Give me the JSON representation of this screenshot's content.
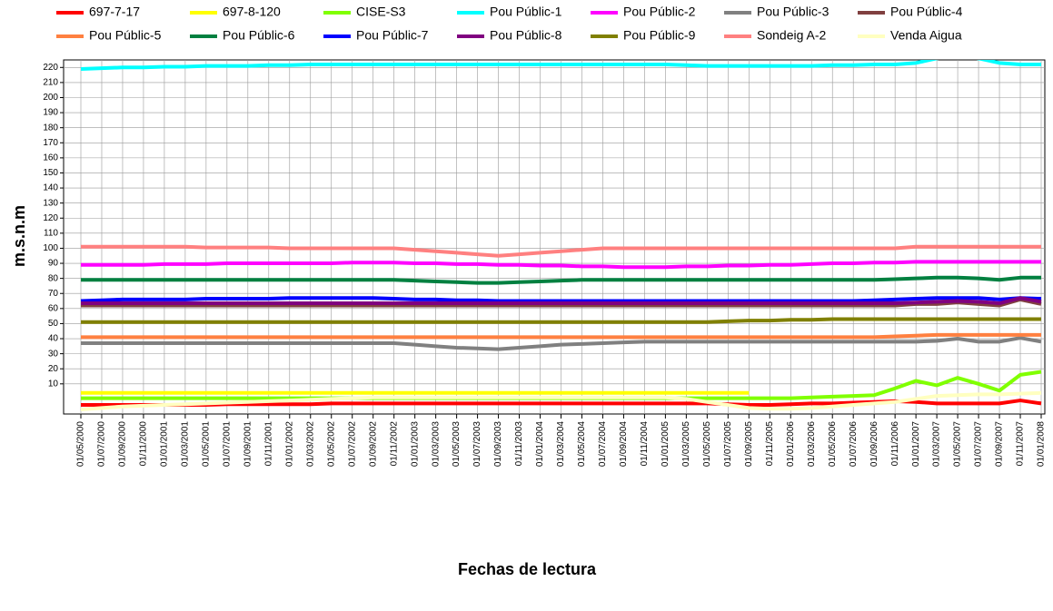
{
  "chart_data": {
    "type": "line",
    "x_label": "Fechas de lectura",
    "y_label": "m.s.n.m",
    "legend": "top",
    "grid": true,
    "categories": [
      "01/05/2000",
      "01/07/2000",
      "01/09/2000",
      "01/11/2000",
      "01/01/2001",
      "01/03/2001",
      "01/05/2001",
      "01/07/2001",
      "01/09/2001",
      "01/11/2001",
      "01/01/2002",
      "01/03/2002",
      "01/05/2002",
      "01/07/2002",
      "01/09/2002",
      "01/11/2002",
      "01/01/2003",
      "01/03/2003",
      "01/05/2003",
      "01/07/2003",
      "01/09/2003",
      "01/11/2003",
      "01/01/2004",
      "01/03/2004",
      "01/05/2004",
      "01/07/2004",
      "01/09/2004",
      "01/11/2004",
      "01/01/2005",
      "01/03/2005",
      "01/05/2005",
      "01/07/2005",
      "01/09/2005",
      "01/11/2005",
      "01/01/2006",
      "01/03/2006",
      "01/05/2006",
      "01/07/2006",
      "01/09/2006",
      "01/11/2006",
      "01/01/2007",
      "01/03/2007",
      "01/05/2007",
      "01/07/2007",
      "01/09/2007",
      "01/11/2007",
      "01/01/2008"
    ],
    "ylim": [
      -10,
      225
    ],
    "yticks": [
      10,
      20,
      30,
      40,
      50,
      60,
      70,
      80,
      90,
      100,
      110,
      120,
      130,
      140,
      150,
      160,
      170,
      180,
      190,
      200,
      210,
      220
    ],
    "series": [
      {
        "name": "697-7-17",
        "color": "#ff0000",
        "values": [
          -4,
          -4,
          -4,
          -4,
          -4,
          -4,
          -4,
          -3.5,
          -3.5,
          -3.5,
          -3.5,
          -3.5,
          -3,
          -3,
          -3,
          -3,
          -3,
          -3,
          -3,
          -3,
          -3,
          -3,
          -3,
          -3,
          -3,
          -3,
          -3,
          -3,
          -3,
          -3,
          -3,
          -3.5,
          -4,
          -4,
          -3.5,
          -3,
          -3,
          -2.5,
          -2,
          -1.5,
          -2,
          -3,
          -3,
          -3,
          -3,
          -1,
          -3
        ]
      },
      {
        "name": "697-8-120",
        "color": "#ffff00",
        "values": [
          4,
          4,
          4,
          4,
          4,
          4,
          4,
          4,
          4,
          4,
          4,
          4,
          4,
          4,
          4,
          4,
          4,
          4,
          4,
          4,
          4,
          4,
          4,
          4,
          4,
          4,
          4,
          4,
          4,
          4,
          4,
          4,
          4,
          null,
          null,
          null,
          null,
          null,
          null,
          null,
          null,
          null,
          null,
          null,
          null,
          null,
          null
        ]
      },
      {
        "name": "CISE-S3",
        "color": "#80ff00",
        "values": [
          0.5,
          0.5,
          0.5,
          0.5,
          0.5,
          0.5,
          0.5,
          0.5,
          0.5,
          0.5,
          0.5,
          0.5,
          0.5,
          0.5,
          0.5,
          0.5,
          0.5,
          0.5,
          0.5,
          0.5,
          0.5,
          0.5,
          0.5,
          0.5,
          0.5,
          0.5,
          0.5,
          0.5,
          0.5,
          0.5,
          0.5,
          0.5,
          0.5,
          0.5,
          0.5,
          1,
          1.5,
          2,
          2.5,
          7,
          12,
          9,
          14,
          10,
          5.5,
          16,
          18
        ]
      },
      {
        "name": "Pou Públic-1",
        "color": "#00ffff",
        "values": [
          219,
          219.5,
          220,
          220,
          220.5,
          220.5,
          221,
          221,
          221,
          221.5,
          221.5,
          222,
          222,
          222,
          222,
          222,
          222,
          222,
          222,
          222,
          222,
          222,
          222,
          222,
          222,
          222,
          222,
          222,
          222,
          221.5,
          221,
          221,
          221,
          221,
          221,
          221,
          221.5,
          221.5,
          222,
          222,
          223,
          226,
          228,
          226,
          223,
          222,
          222
        ]
      },
      {
        "name": "Pou Públic-2",
        "color": "#ff00ff",
        "values": [
          89,
          89,
          89,
          89,
          89.5,
          89.5,
          89.5,
          90,
          90,
          90,
          90,
          90,
          90,
          90.5,
          90.5,
          90.5,
          90,
          90,
          89.5,
          89.5,
          89,
          89,
          88.5,
          88.5,
          88,
          88,
          87.5,
          87.5,
          87.5,
          88,
          88,
          88.5,
          88.5,
          89,
          89,
          89.5,
          90,
          90,
          90.5,
          90.5,
          91,
          91,
          91,
          91,
          91,
          91,
          91
        ]
      },
      {
        "name": "Pou Públic-3",
        "color": "#808080",
        "values": [
          37,
          37,
          37,
          37,
          37,
          37,
          37,
          37,
          37,
          37,
          37,
          37,
          37,
          37,
          37,
          37,
          36,
          35,
          34,
          33.5,
          33,
          34,
          35,
          36,
          36.5,
          37,
          37.5,
          38,
          38,
          38,
          38,
          38,
          38,
          38,
          38,
          38,
          38,
          38,
          38,
          38,
          38,
          38.5,
          40,
          38,
          38,
          40.5,
          38
        ]
      },
      {
        "name": "Pou Públic-4",
        "color": "#804040",
        "values": [
          62,
          62,
          62,
          62,
          62,
          62,
          62,
          62,
          62,
          62,
          62,
          62,
          62,
          62,
          62,
          62,
          62,
          62,
          62,
          62,
          62,
          62,
          62,
          62,
          62,
          62,
          62,
          62,
          62,
          62,
          62,
          62,
          62,
          62,
          62,
          62,
          62,
          62,
          62,
          62,
          63,
          63,
          64,
          63,
          62,
          66,
          63
        ]
      },
      {
        "name": "Pou Públic-5",
        "color": "#ff8040",
        "values": [
          41,
          41,
          41,
          41,
          41,
          41,
          41,
          41,
          41,
          41,
          41,
          41,
          41,
          41,
          41,
          41,
          41,
          41,
          41,
          41,
          41,
          41,
          41,
          41,
          41,
          41,
          41,
          41,
          41,
          41,
          41,
          41,
          41,
          41,
          41,
          41,
          41,
          41,
          41,
          41.5,
          42,
          42.5,
          42.5,
          42.5,
          42.5,
          42.5,
          42.5
        ]
      },
      {
        "name": "Pou Públic-6",
        "color": "#008040",
        "values": [
          79,
          79,
          79,
          79,
          79,
          79,
          79,
          79,
          79,
          79,
          79,
          79,
          79,
          79,
          79,
          79,
          78.5,
          78,
          77.5,
          77,
          77,
          77.5,
          78,
          78.5,
          79,
          79,
          79,
          79,
          79,
          79,
          79,
          79,
          79,
          79,
          79,
          79,
          79,
          79,
          79,
          79.5,
          80,
          80.5,
          80.5,
          80,
          79,
          80.5,
          80.5
        ]
      },
      {
        "name": "Pou Públic-7",
        "color": "#0000ff",
        "values": [
          65,
          65.5,
          66,
          66,
          66,
          66,
          66.5,
          66.5,
          66.5,
          66.5,
          67,
          67,
          67,
          67,
          67,
          66.5,
          66,
          66,
          65.5,
          65.5,
          65,
          65,
          65,
          65,
          65,
          65,
          65,
          65,
          65,
          65,
          65,
          65,
          65,
          65,
          65,
          65,
          65,
          65,
          65.5,
          66,
          66.5,
          67,
          67,
          67,
          66,
          67,
          66.5
        ]
      },
      {
        "name": "Pou Públic-8",
        "color": "#800080",
        "values": [
          63.5,
          63.5,
          63.5,
          63.5,
          63.5,
          63.5,
          63.5,
          63.5,
          63.5,
          63.5,
          63.5,
          63.5,
          63.5,
          63.5,
          63.5,
          63.5,
          63.5,
          63.5,
          63.5,
          63.5,
          63.5,
          63.5,
          63.5,
          63.5,
          63.5,
          63.5,
          63.5,
          63.5,
          63.5,
          63.5,
          63.5,
          63.5,
          63.5,
          63.5,
          63.5,
          63.5,
          63.5,
          63.5,
          63.5,
          63.5,
          64,
          64.5,
          65,
          64.5,
          63.5,
          67,
          64.5
        ]
      },
      {
        "name": "Pou Públic-9",
        "color": "#808000",
        "values": [
          51,
          51,
          51,
          51,
          51,
          51,
          51,
          51,
          51,
          51,
          51,
          51,
          51,
          51,
          51,
          51,
          51,
          51,
          51,
          51,
          51,
          51,
          51,
          51,
          51,
          51,
          51,
          51,
          51,
          51,
          51,
          51.5,
          52,
          52,
          52.5,
          52.5,
          53,
          53,
          53,
          53,
          53,
          53,
          53,
          53,
          53,
          53,
          53
        ]
      },
      {
        "name": "Sondeig A-2",
        "color": "#ff8080",
        "values": [
          101,
          101,
          101,
          101,
          101,
          101,
          100.5,
          100.5,
          100.5,
          100.5,
          100,
          100,
          100,
          100,
          100,
          100,
          99,
          98,
          97,
          96,
          95,
          96,
          97,
          98,
          99,
          100,
          100,
          100,
          100,
          100,
          100,
          100,
          100,
          100,
          100,
          100,
          100,
          100,
          100,
          100,
          101,
          101,
          101,
          101,
          101,
          101,
          101
        ]
      },
      {
        "name": "Venda Aigua",
        "color": "#ffffc0",
        "values": [
          -7,
          -6,
          -5,
          -4.5,
          -4,
          -3.5,
          -3,
          -2.5,
          -2,
          -1.5,
          -1,
          -0.5,
          0,
          0.5,
          1,
          1,
          1,
          1,
          1,
          1,
          1,
          1,
          1,
          1,
          1,
          1,
          1,
          1,
          1,
          0,
          -2,
          -4,
          -6,
          -6.5,
          -6.5,
          -6,
          -5,
          -4,
          -3,
          -2,
          0,
          2,
          2.5,
          3,
          3,
          3.5,
          4
        ]
      }
    ]
  }
}
